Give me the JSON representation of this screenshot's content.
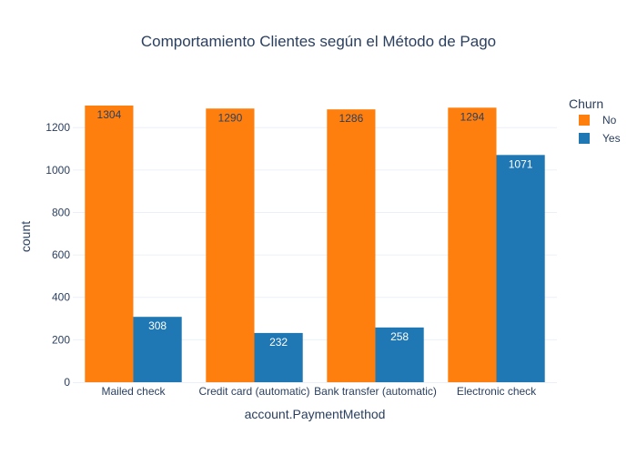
{
  "chart_data": {
    "type": "bar",
    "title": "Comportamiento Clientes según el Método de Pago",
    "xlabel": "account.PaymentMethod",
    "ylabel": "count",
    "categories": [
      "Mailed check",
      "Credit card (automatic)",
      "Bank transfer (automatic)",
      "Electronic check"
    ],
    "ylim": [
      0,
      1372.6
    ],
    "yticks": [
      0,
      200,
      400,
      600,
      800,
      1000,
      1200
    ],
    "grid": "on",
    "legend": {
      "title": "Churn",
      "placement": "top-right"
    },
    "series": [
      {
        "name": "No",
        "color": "#ff7f0e",
        "values": [
          1304,
          1290,
          1286,
          1294
        ]
      },
      {
        "name": "Yes",
        "color": "#1f77b4",
        "values": [
          308,
          232,
          258,
          1071
        ]
      }
    ]
  }
}
